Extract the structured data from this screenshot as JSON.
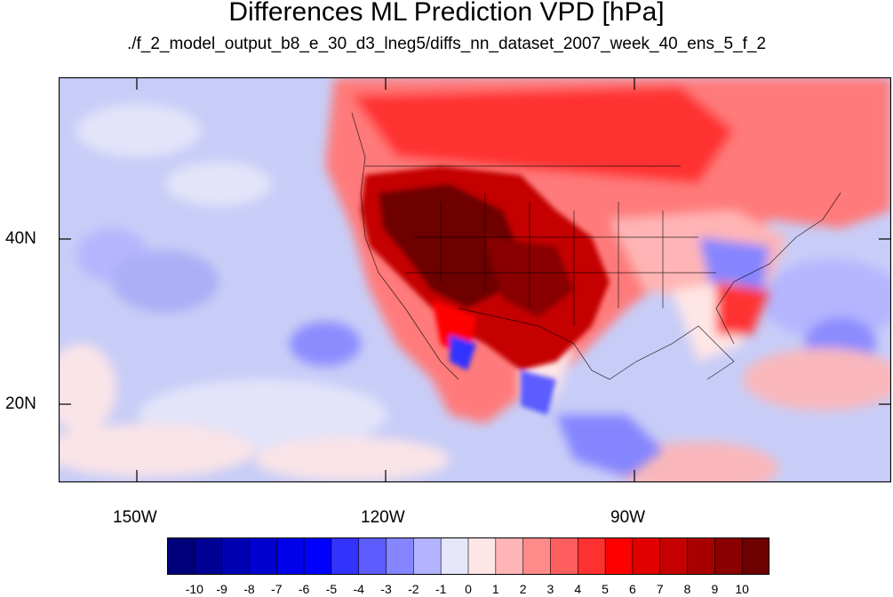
{
  "title": "Differences ML Prediction VPD [hPa]",
  "subtitle": "./f_2_model_output_b8_e_30_d3_lneg5/diffs_nn_dataset_2007_week_40_ens_5_f_2",
  "axes": {
    "lat_ticks": [
      "40N",
      "20N"
    ],
    "lon_ticks": [
      "150W",
      "120W",
      "90W"
    ]
  },
  "colorbar": {
    "labels": [
      "-10",
      "-9",
      "-8",
      "-7",
      "-6",
      "-5",
      "-4",
      "-3",
      "-2",
      "-1",
      "0",
      "1",
      "2",
      "3",
      "4",
      "5",
      "6",
      "7",
      "8",
      "9",
      "10"
    ],
    "colors": [
      "#00007a",
      "#000095",
      "#0000b3",
      "#0000d0",
      "#0000ea",
      "#0000ff",
      "#3333ff",
      "#5c5cff",
      "#8585ff",
      "#b3b3ff",
      "#e6e6fa",
      "#ffe6e6",
      "#ffb5b5",
      "#ff8a8a",
      "#ff5e5e",
      "#ff3030",
      "#ff0000",
      "#e00000",
      "#c40000",
      "#a80000",
      "#8a0000",
      "#6e0000"
    ]
  },
  "colors": {
    "ocean_base": "#c8cdf7",
    "land_warm": "#ff4a4a",
    "hot_core": "#8a0000",
    "cool_patch": "#5c5cff"
  }
}
